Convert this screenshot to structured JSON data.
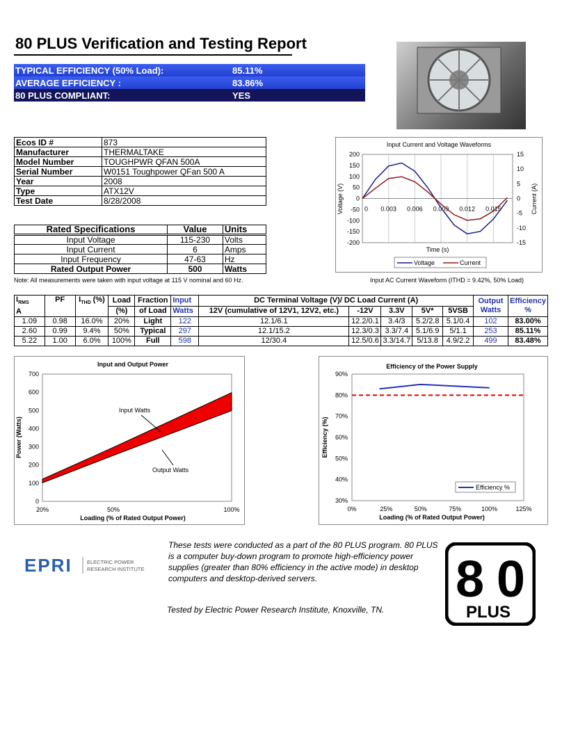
{
  "title": "80 PLUS Verification and Testing Report",
  "summary": [
    {
      "label": "TYPICAL EFFICIENCY (50% Load):",
      "value": "85.11%"
    },
    {
      "label": "AVERAGE EFFICIENCY :",
      "value": "83.86%"
    },
    {
      "label": "80 PLUS COMPLIANT:",
      "value": "YES"
    }
  ],
  "info": [
    {
      "k": "Ecos ID #",
      "v": "873"
    },
    {
      "k": "Manufacturer",
      "v": "THERMALTAKE"
    },
    {
      "k": "Model Number",
      "v": "TOUGHPWR QFAN 500A"
    },
    {
      "k": "Serial Number",
      "v": "W0151 Toughpower QFan 500 A"
    },
    {
      "k": "Year",
      "v": "2008"
    },
    {
      "k": "Type",
      "v": "ATX12V"
    },
    {
      "k": "Test Date",
      "v": "8/28/2008"
    }
  ],
  "rated": {
    "headers": [
      "Rated Specifications",
      "Value",
      "Units"
    ],
    "rows": [
      [
        "Input Voltage",
        "115-230",
        "Volts"
      ],
      [
        "Input Current",
        "6",
        "Amps"
      ],
      [
        "Input Frequency",
        "47-63",
        "Hz"
      ],
      [
        "Rated Output Power",
        "500",
        "Watts"
      ]
    ]
  },
  "note": "Note: All measurements were taken with input voltage at 115 V nominal and 60 Hz.",
  "wave_caption": "Input AC Current Waveform (ITHD = 9.42%, 50% Load)",
  "main_table": {
    "h1": [
      "I",
      "RMS",
      "PF",
      "I",
      "THD",
      " (%)",
      "Load",
      "Fraction",
      "Input",
      "DC Terminal Voltage (V)/ DC Load Current (A)",
      "Output",
      "Efficiency"
    ],
    "h2": [
      "A",
      "(%)",
      "of Load",
      "Watts",
      "12V (cumulative of 12V1, 12V2, etc.)",
      "-12V",
      "3.3V",
      "5V*",
      "5VSB",
      "Watts",
      "%"
    ],
    "rows": [
      [
        "1.09",
        "0.98",
        "16.0%",
        "20%",
        "Light",
        "122",
        "12.1/6.1",
        "12.2/0.1",
        "3.4/3",
        "5.2/2.8",
        "5.1/0.4",
        "102",
        "83.00%"
      ],
      [
        "2.60",
        "0.99",
        "9.4%",
        "50%",
        "Typical",
        "297",
        "12.1/15.2",
        "12.3/0.3",
        "3.3/7.4",
        "5.1/6.9",
        "5/1.1",
        "253",
        "85.11%"
      ],
      [
        "5.22",
        "1.00",
        "6.0%",
        "100%",
        "Full",
        "598",
        "12/30.4",
        "12.5/0.6",
        "3.3/14.7",
        "5/13.8",
        "4.9/2.2",
        "499",
        "83.48%"
      ]
    ]
  },
  "paragraph": "These tests were conducted as a part of the 80 PLUS program.  80 PLUS is a computer buy-down program to promote high-efficiency power supplies (greater than 80% efficiency in the active mode) in desktop computers and desktop-derived servers.",
  "tested_by": "Tested by Electric Power Research Institute, Knoxville, TN.",
  "logos": {
    "epri": "EPRI",
    "epri_sub": [
      "ELECTRIC POWER",
      "RESEARCH INSTITUTE"
    ],
    "plus": "80 PLUS"
  },
  "colors": {
    "blue": "#2a4ee0",
    "navy": "#14145a",
    "voltage": "#1a1a80",
    "current": "#8b1a1a",
    "fill": "#ee0000"
  },
  "chart_data": [
    {
      "type": "line",
      "title": "Input Current and Voltage Waveforms",
      "xlabel": "Time (s)",
      "ylabel": "Voltage (V)",
      "y2label": "Current (A)",
      "xticks": [
        "0",
        "0.003",
        "0.006",
        "0.009",
        "0.012",
        "0.015"
      ],
      "yticks": [
        "200",
        "150",
        "100",
        "50",
        "0",
        "-50",
        "-100",
        "-150",
        "-200"
      ],
      "y2ticks": [
        "15",
        "10",
        "5",
        "0",
        "-5",
        "-10",
        "-15"
      ],
      "ylim": [
        -200,
        200
      ],
      "y2lim": [
        -15,
        15
      ],
      "legend": "bottom",
      "grid": true,
      "x": [
        0,
        0.0015,
        0.003,
        0.0045,
        0.006,
        0.0075,
        0.009,
        0.0105,
        0.012,
        0.0135,
        0.015,
        0.0166
      ],
      "series": [
        {
          "name": "Voltage",
          "values": [
            0,
            87,
            147,
            161,
            124,
            48,
            -42,
            -120,
            -160,
            -149,
            -93,
            -8
          ]
        },
        {
          "name": "Current",
          "axis": "right",
          "values": [
            0,
            3.5,
            6.8,
            7.4,
            5.7,
            2.2,
            -1.9,
            -5.5,
            -7.4,
            -6.9,
            -4.3,
            0.3
          ]
        }
      ]
    },
    {
      "type": "area",
      "title": "Input and Output Power",
      "xlabel": "Loading (% of Rated Output Power)",
      "ylabel": "Power (Watts)",
      "xticks": [
        "20%",
        "50%",
        "100%"
      ],
      "yticks": [
        "700",
        "600",
        "500",
        "400",
        "300",
        "200",
        "100",
        "0"
      ],
      "ylim": [
        0,
        700
      ],
      "x": [
        20,
        50,
        100
      ],
      "series": [
        {
          "name": "Input Watts",
          "values": [
            122,
            297,
            598
          ]
        },
        {
          "name": "Output Watts",
          "values": [
            102,
            253,
            499
          ]
        }
      ],
      "annotations": [
        "Input Watts",
        "Output Watts"
      ]
    },
    {
      "type": "line",
      "title": "Efficiency of the Power Supply",
      "xlabel": "Loading (% of Rated Output Power)",
      "ylabel": "Efficiency (%)",
      "xticks": [
        "0%",
        "25%",
        "50%",
        "75%",
        "100%",
        "125%"
      ],
      "yticks": [
        "90%",
        "80%",
        "70%",
        "60%",
        "50%",
        "40%",
        "30%"
      ],
      "xlim": [
        0,
        125
      ],
      "ylim": [
        30,
        90
      ],
      "legend": "bottom-right",
      "x": [
        20,
        50,
        100
      ],
      "series": [
        {
          "name": "Efficiency %",
          "values": [
            83.0,
            85.11,
            83.48
          ]
        }
      ],
      "threshold": 80
    }
  ]
}
